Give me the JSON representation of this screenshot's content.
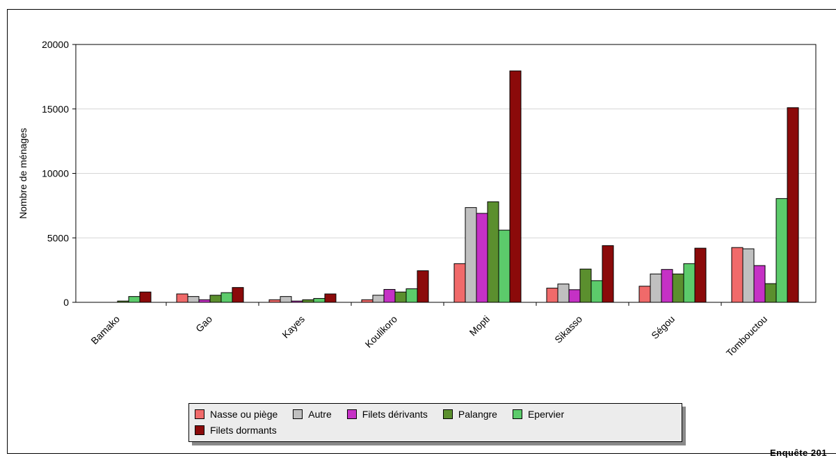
{
  "chart_data": {
    "type": "bar",
    "ylabel": "Nombre de ménages",
    "xlabel": "",
    "ylim": [
      0,
      20000
    ],
    "yticks": [
      0,
      5000,
      10000,
      15000,
      20000
    ],
    "grid": true,
    "legend_position": "bottom",
    "categories": [
      "Bamako",
      "Gao",
      "Kayes",
      "Koulikoro",
      "Mopti",
      "Sikasso",
      "Ségou",
      "Tombouctou"
    ],
    "series": [
      {
        "name": "Nasse ou piège",
        "color": "#f06a6a",
        "values": [
          0,
          650,
          200,
          200,
          3000,
          1100,
          1250,
          4250
        ]
      },
      {
        "name": "Autre",
        "color": "#c0c0c0",
        "values": [
          0,
          450,
          450,
          550,
          7350,
          1420,
          2200,
          4150
        ]
      },
      {
        "name": "Filets dérivants",
        "color": "#c531c5",
        "values": [
          0,
          200,
          100,
          1000,
          6900,
          980,
          2550,
          2850
        ]
      },
      {
        "name": "Palangre",
        "color": "#5b8f2e",
        "values": [
          100,
          550,
          200,
          800,
          7800,
          2580,
          2200,
          1450
        ]
      },
      {
        "name": "Epervier",
        "color": "#5ccb6b",
        "values": [
          450,
          750,
          300,
          1050,
          5600,
          1680,
          3000,
          8050
        ]
      },
      {
        "name": "Filets dormants",
        "color": "#8b0a0a",
        "values": [
          800,
          1150,
          650,
          2450,
          17950,
          4400,
          4200,
          15100
        ]
      }
    ]
  },
  "source": "Enquête 201"
}
